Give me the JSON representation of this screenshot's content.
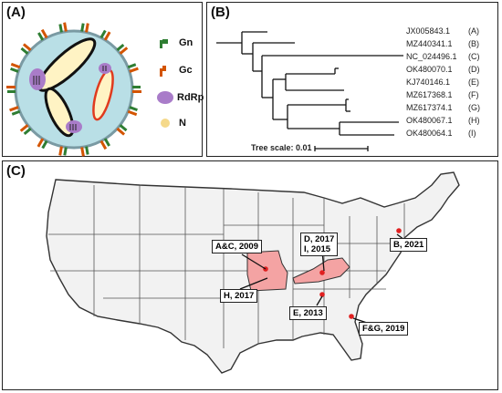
{
  "panel_a": {
    "label": "(A)",
    "legend": [
      {
        "label": "Gn",
        "icon": "gn-glycoprotein-icon",
        "color": "#2e7d32"
      },
      {
        "label": "Gc",
        "icon": "gc-glycoprotein-icon",
        "color": "#d35400"
      },
      {
        "label": "RdRp",
        "icon": "rdrp-polymerase-icon",
        "color": "#a97cc9"
      },
      {
        "label": "N",
        "icon": "nucleoprotein-icon",
        "color": "#f5d98a"
      }
    ]
  },
  "panel_b": {
    "label": "(B)",
    "tree_scale_label": "Tree scale: 0.01",
    "leaves": [
      {
        "accession": "JX005843.1",
        "tag": "(A)"
      },
      {
        "accession": "MZ440341.1",
        "tag": "(B)"
      },
      {
        "accession": "NC_024496.1",
        "tag": "(C)"
      },
      {
        "accession": "OK480070.1",
        "tag": "(D)"
      },
      {
        "accession": "KJ740146.1",
        "tag": "(E)"
      },
      {
        "accession": "MZ617368.1",
        "tag": "(F)"
      },
      {
        "accession": "MZ617374.1",
        "tag": "(G)"
      },
      {
        "accession": "OK480067.1",
        "tag": "(H)"
      },
      {
        "accession": "OK480064.1",
        "tag": "(I)"
      }
    ]
  },
  "panel_c": {
    "label": "(C)",
    "highlight_color": "#f4a3a3",
    "dot_color": "#e02020",
    "callouts": [
      {
        "id": "ac",
        "text": "A&C, 2009"
      },
      {
        "id": "h",
        "text": "H, 2017"
      },
      {
        "id": "di",
        "line1": "D, 2017",
        "line2": "I, 2015"
      },
      {
        "id": "b",
        "text": "B, 2021"
      },
      {
        "id": "e",
        "text": "E, 2013"
      },
      {
        "id": "fg",
        "text": "F&G, 2019"
      }
    ]
  }
}
